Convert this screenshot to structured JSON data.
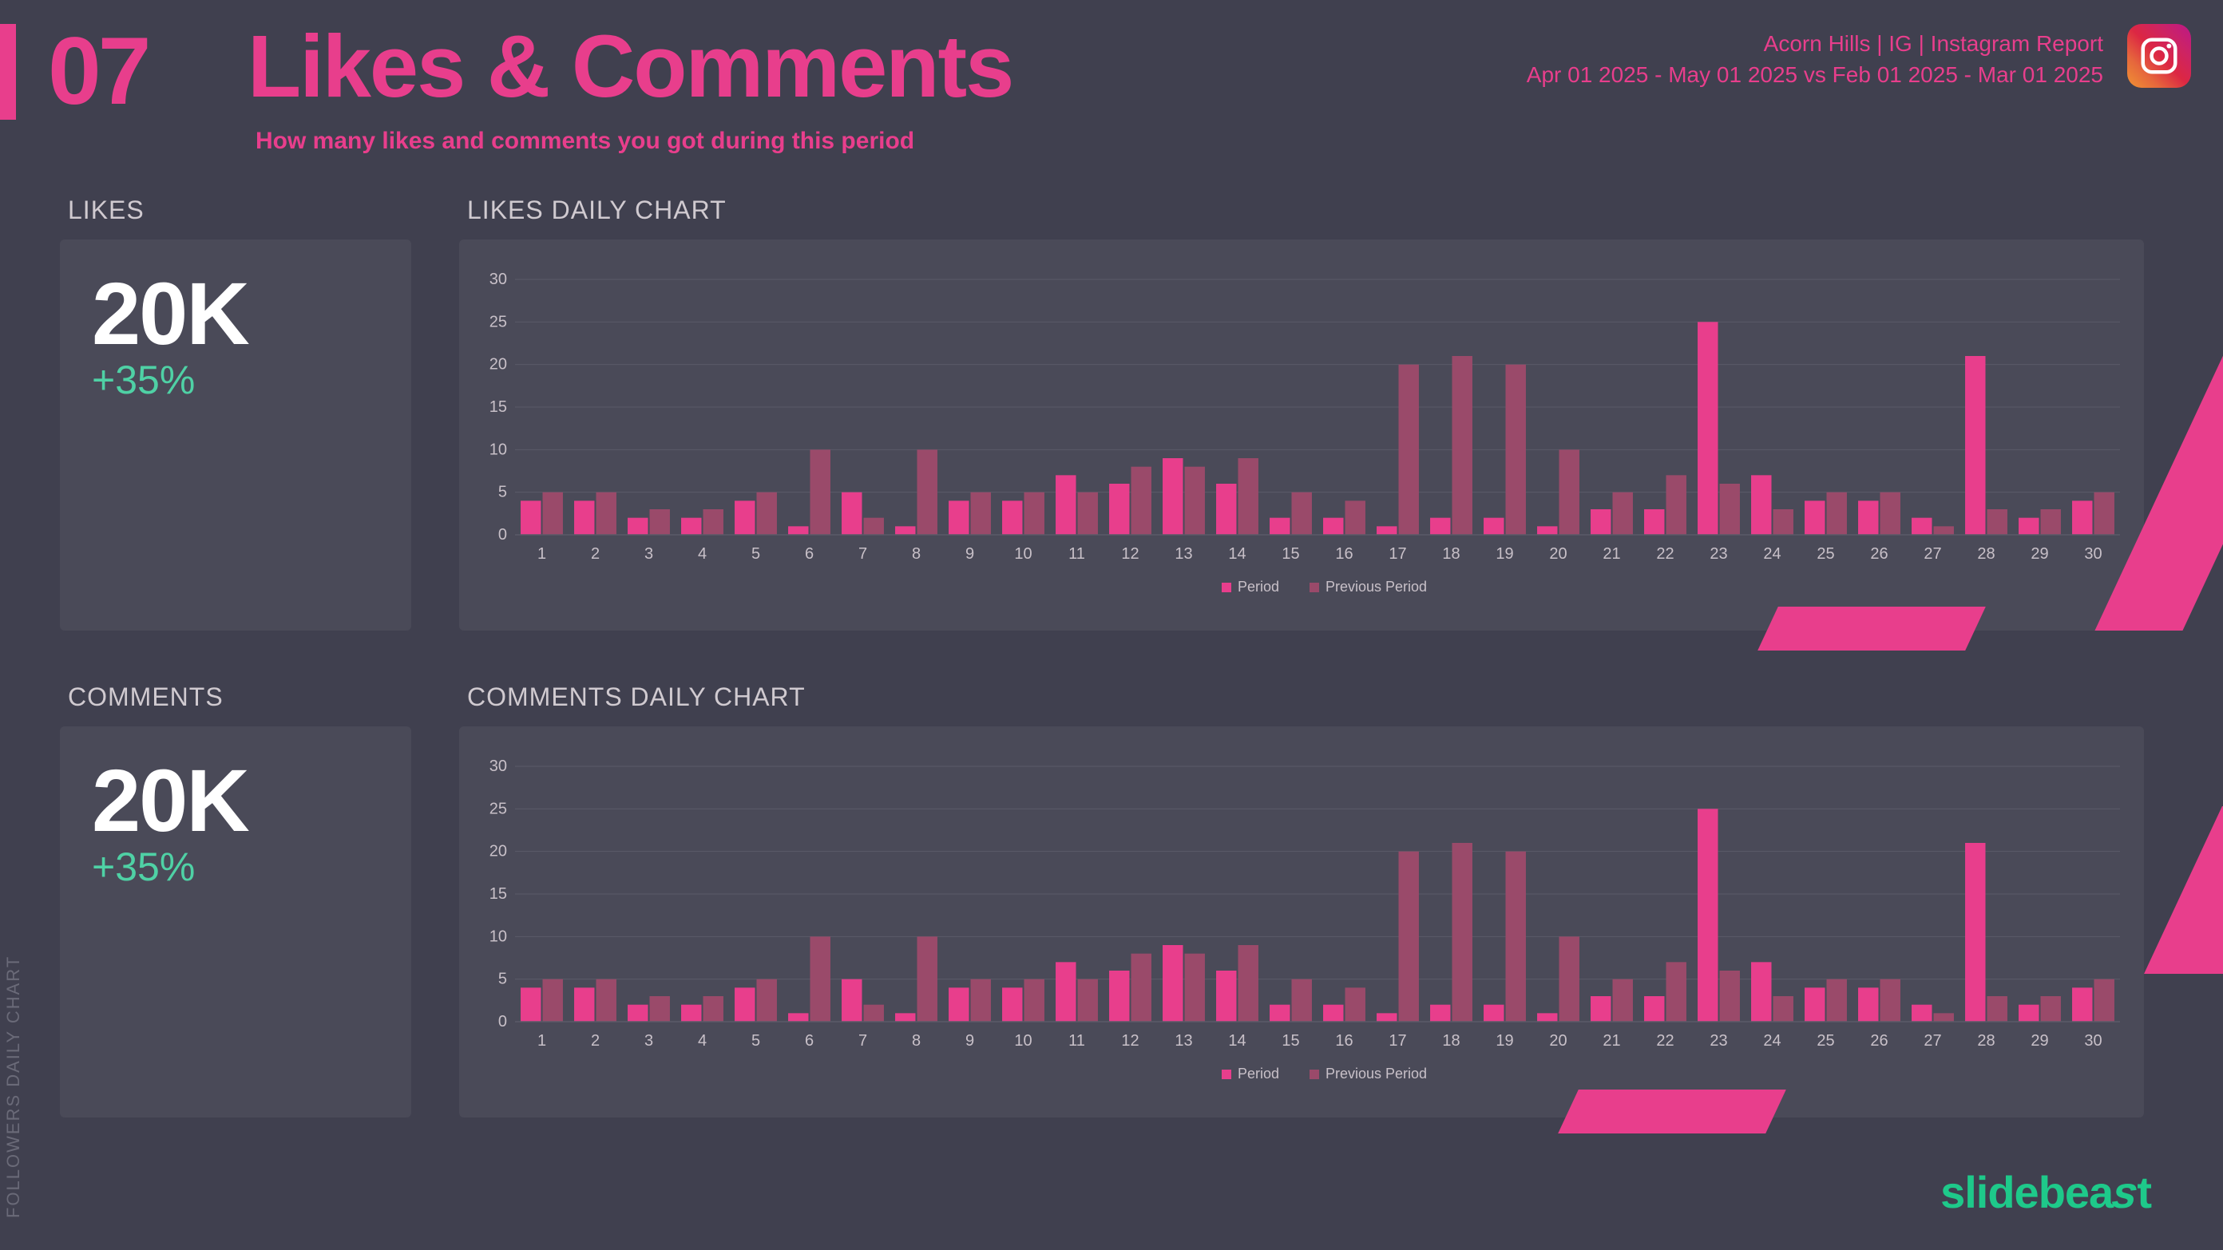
{
  "page": {
    "number": "07",
    "title": "Likes & Comments",
    "subtitle": "How many likes and comments you got during this period",
    "report_line1": "Acorn Hills | IG | Instagram Report",
    "report_line2": "Apr 01 2025 - May 01 2025 vs Feb 01 2025 - Mar 01 2025",
    "side_label": "FOLLOWERS DAILY CHART",
    "brand": "slidebeast"
  },
  "colors": {
    "bg": "#40404f",
    "panel": "#4a4a58",
    "accent": "#e83e8c",
    "accent_muted": "#9a4a6a",
    "delta_positive": "#4fd1a5",
    "text": "#c8c0c8",
    "white": "#ffffff",
    "grid": "#5a5a68"
  },
  "likes": {
    "label": "LIKES",
    "value": "20K",
    "delta": "+35%",
    "chart_title": "LIKES DAILY CHART"
  },
  "comments": {
    "label": "COMMENTS",
    "value": "20K",
    "delta": "+35%",
    "chart_title": "COMMENTS DAILY CHART"
  },
  "chart": {
    "type": "bar",
    "xlabels": [
      "1",
      "2",
      "3",
      "4",
      "5",
      "6",
      "7",
      "8",
      "9",
      "10",
      "11",
      "12",
      "13",
      "14",
      "15",
      "16",
      "17",
      "18",
      "19",
      "20",
      "21",
      "22",
      "23",
      "24",
      "25",
      "26",
      "27",
      "28",
      "29",
      "30"
    ],
    "ylim": [
      0,
      30
    ],
    "ytick_step": 5,
    "yticks": [
      0,
      5,
      10,
      15,
      20,
      25,
      30
    ],
    "legend": {
      "period": "Period",
      "previous": "Previous Period"
    },
    "series_colors": {
      "period": "#e83e8c",
      "previous": "#9a4a6a"
    },
    "bar_width": 0.38,
    "grid_color": "#5a5a68",
    "title_fontsize": 30,
    "axis_fontsize": 20,
    "legend_fontsize": 18,
    "period": [
      4,
      4,
      2,
      2,
      4,
      1,
      5,
      1,
      4,
      4,
      7,
      6,
      9,
      6,
      2,
      2,
      1,
      2,
      2,
      1,
      3,
      3,
      25,
      7,
      4,
      4,
      2,
      21,
      2,
      4
    ],
    "previous": [
      5,
      5,
      3,
      3,
      5,
      10,
      2,
      10,
      5,
      5,
      5,
      8,
      8,
      9,
      5,
      4,
      20,
      21,
      20,
      10,
      5,
      7,
      6,
      3,
      5,
      5,
      1,
      3,
      3,
      5
    ]
  }
}
